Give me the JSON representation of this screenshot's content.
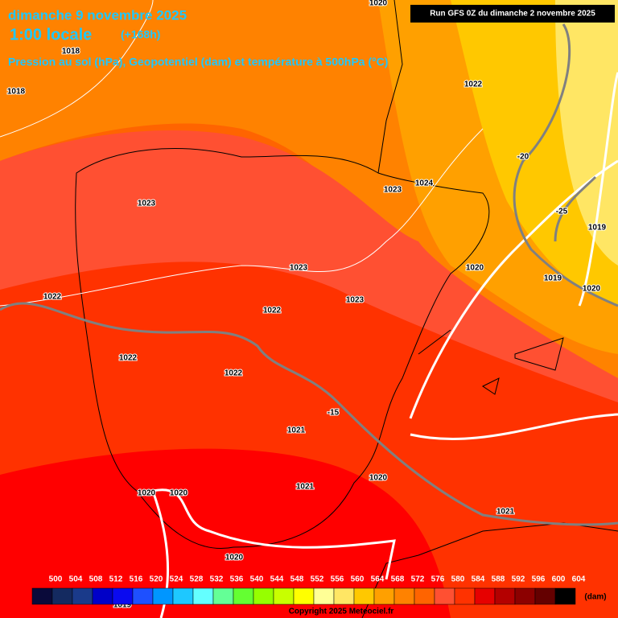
{
  "header": {
    "title": "dimanche 9 novembre 2025",
    "time": "1:00 locale",
    "offset": "(+168h)",
    "subtitle": "Pression au sol (hPa), Geopotentiel (dam) et température à 500hPa (°C)",
    "run": "Run GFS 0Z du dimanche 2 novembre 2025"
  },
  "map": {
    "labels": [
      "1020",
      "1018",
      "1018",
      "1022",
      "-20",
      "1023",
      "1023",
      "1024",
      "-25",
      "1019",
      "1020",
      "1019",
      "1020",
      "1023",
      "1022",
      "1023",
      "1022",
      "1022",
      "1022",
      "-15",
      "1021",
      "1021",
      "1020",
      "1020",
      "1020",
      "1021",
      "1020",
      "1019"
    ]
  },
  "colorbar": {
    "labels": [
      500,
      504,
      508,
      512,
      516,
      520,
      524,
      528,
      532,
      536,
      540,
      544,
      548,
      552,
      556,
      560,
      564,
      568,
      572,
      576,
      580,
      584,
      588,
      592,
      596,
      600,
      604
    ],
    "colors": [
      "#0a0a3a",
      "#142a60",
      "#1a3a8a",
      "#0000c8",
      "#0a0af0",
      "#1e50ff",
      "#0096ff",
      "#1ec8ff",
      "#64ffff",
      "#64ff96",
      "#64ff32",
      "#96ff00",
      "#c8ff00",
      "#ffff00",
      "#ffff96",
      "#ffe664",
      "#ffc800",
      "#ffa000",
      "#ff8200",
      "#ff6400",
      "#ff5032",
      "#ff3200",
      "#e60000",
      "#b40000",
      "#8c0000",
      "#640000",
      "#000000"
    ],
    "unit": "(dam)"
  },
  "copyright": "Copyright 2025 Meteociel.fr"
}
